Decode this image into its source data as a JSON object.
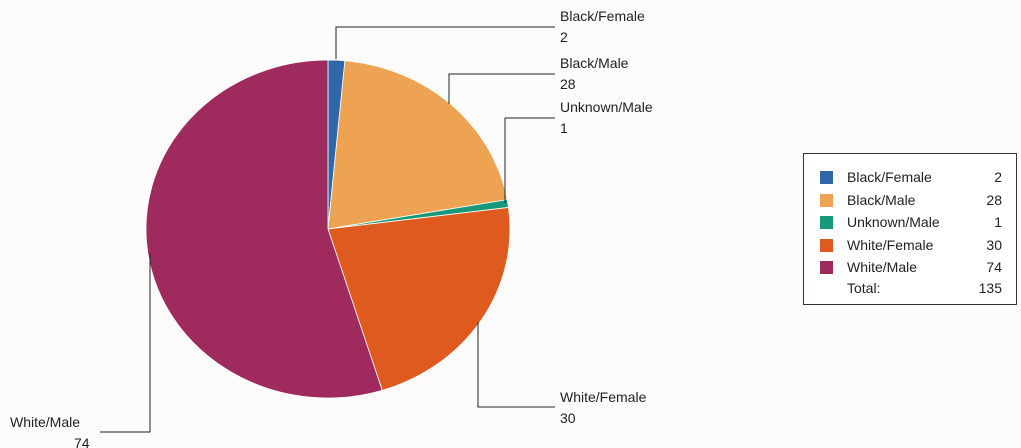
{
  "chart_data": {
    "type": "pie",
    "slices": [
      {
        "label": "Black/Female",
        "value": 2,
        "color": "#2f67a8"
      },
      {
        "label": "Black/Male",
        "value": 28,
        "color": "#eea352"
      },
      {
        "label": "Unknown/Male",
        "value": 1,
        "color": "#17987a"
      },
      {
        "label": "White/Female",
        "value": 30,
        "color": "#de5a1f"
      },
      {
        "label": "White/Male",
        "value": 74,
        "color": "#9e2a5e"
      }
    ],
    "legend_placement": "right",
    "total_label": "Total:",
    "total_value": 135
  }
}
